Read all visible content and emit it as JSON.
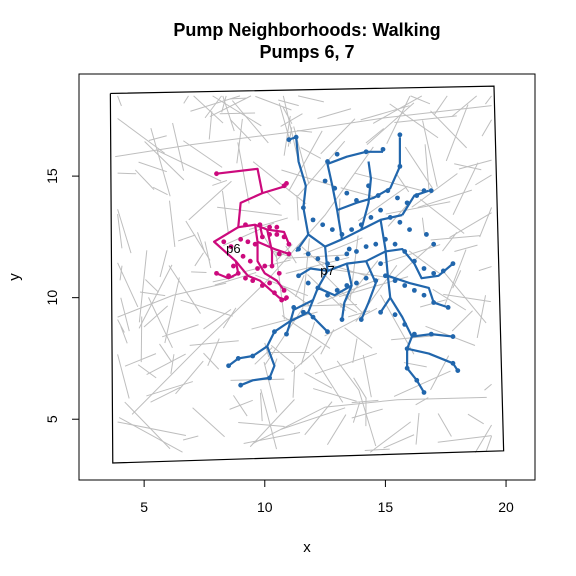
{
  "chart_data": {
    "type": "scatter",
    "title": "Pump Neighborhoods: Walking",
    "subtitle": "Pumps 6, 7",
    "xlabel": "x",
    "ylabel": "y",
    "xlim": [
      2.3,
      21.2
    ],
    "ylim": [
      2.5,
      19.2
    ],
    "x_ticks": [
      5,
      10,
      15,
      20
    ],
    "y_ticks": [
      5,
      10,
      15
    ],
    "grid": false,
    "colors": {
      "streets": "#bebebe",
      "border": "#000000",
      "pump6": "#cc0a7d",
      "pump7": "#2166ac"
    },
    "map_border": [
      [
        3.6,
        18.4
      ],
      [
        19.5,
        18.7
      ],
      [
        19.9,
        3.7
      ],
      [
        3.7,
        3.2
      ]
    ],
    "pumps": [
      {
        "label": "p6",
        "x": 8.7,
        "y": 12.0
      },
      {
        "label": "p7",
        "x": 12.6,
        "y": 11.1
      }
    ],
    "series": [
      {
        "label": "p6",
        "color": "#cc0a7d",
        "paths": [
          [
            [
              8.0,
              15.1
            ],
            [
              9.7,
              15.3
            ],
            [
              9.9,
              14.3
            ],
            [
              9.0,
              13.9
            ],
            [
              8.9,
              12.9
            ],
            [
              7.9,
              12.3
            ],
            [
              8.8,
              11.5
            ],
            [
              9.3,
              10.9
            ],
            [
              9.8,
              10.7
            ],
            [
              10.6,
              10.0
            ],
            [
              10.9,
              9.9
            ]
          ],
          [
            [
              9.9,
              14.3
            ],
            [
              10.9,
              14.6
            ]
          ],
          [
            [
              8.9,
              12.9
            ],
            [
              9.6,
              13.0
            ],
            [
              10.1,
              12.8
            ],
            [
              10.8,
              12.7
            ],
            [
              11.0,
              12.2
            ]
          ],
          [
            [
              9.6,
              13.0
            ],
            [
              9.7,
              12.3
            ],
            [
              9.7,
              11.5
            ],
            [
              10.0,
              11.0
            ],
            [
              10.5,
              10.7
            ],
            [
              10.8,
              10.3
            ]
          ],
          [
            [
              8.8,
              11.5
            ],
            [
              8.9,
              11.0
            ],
            [
              8.5,
              10.8
            ],
            [
              8.0,
              11.0
            ]
          ],
          [
            [
              9.7,
              12.3
            ],
            [
              10.4,
              12.0
            ],
            [
              11.0,
              11.8
            ]
          ],
          [
            [
              10.1,
              12.8
            ],
            [
              10.3,
              11.9
            ],
            [
              10.3,
              11.3
            ]
          ],
          [
            [
              9.8,
              13.0
            ],
            [
              9.9,
              12.5
            ]
          ]
        ],
        "points": [
          [
            8.0,
            15.1
          ],
          [
            10.8,
            14.6
          ],
          [
            10.9,
            14.7
          ],
          [
            10.9,
            10.0
          ],
          [
            10.8,
            10.3
          ],
          [
            11.0,
            12.2
          ],
          [
            11.0,
            11.8
          ],
          [
            8.0,
            11.0
          ],
          [
            9.0,
            12.4
          ],
          [
            9.3,
            12.3
          ],
          [
            9.6,
            12.2
          ],
          [
            9.9,
            12.5
          ],
          [
            10.2,
            12.6
          ],
          [
            10.5,
            12.6
          ],
          [
            10.8,
            12.5
          ],
          [
            9.1,
            11.7
          ],
          [
            9.4,
            11.5
          ],
          [
            9.7,
            11.2
          ],
          [
            10.0,
            11.3
          ],
          [
            10.3,
            11.3
          ],
          [
            10.6,
            11.0
          ],
          [
            8.5,
            10.9
          ],
          [
            8.9,
            11.0
          ],
          [
            9.2,
            10.8
          ],
          [
            9.5,
            10.7
          ],
          [
            9.9,
            10.5
          ],
          [
            10.2,
            10.6
          ],
          [
            10.4,
            10.2
          ],
          [
            10.7,
            9.9
          ],
          [
            8.3,
            12.3
          ],
          [
            8.6,
            12.1
          ],
          [
            9.8,
            13.0
          ],
          [
            10.2,
            12.9
          ],
          [
            10.5,
            12.9
          ],
          [
            9.2,
            13.0
          ],
          [
            8.7,
            11.3
          ],
          [
            10.6,
            11.8
          ]
        ]
      },
      {
        "label": "p7",
        "color": "#2166ac",
        "paths": [
          [
            [
              11.0,
              16.5
            ],
            [
              11.3,
              16.6
            ],
            [
              11.4,
              15.6
            ],
            [
              11.7,
              14.6
            ],
            [
              11.6,
              13.7
            ],
            [
              11.8,
              12.6
            ],
            [
              11.3,
              11.9
            ]
          ],
          [
            [
              11.8,
              12.6
            ],
            [
              12.5,
              12.1
            ],
            [
              13.2,
              12.4
            ],
            [
              14.0,
              12.8
            ],
            [
              14.8,
              13.2
            ],
            [
              15.7,
              13.4
            ]
          ],
          [
            [
              12.5,
              12.1
            ],
            [
              12.6,
              11.1
            ],
            [
              12.2,
              10.4
            ],
            [
              12.0,
              9.9
            ],
            [
              11.8,
              9.4
            ],
            [
              12.6,
              8.6
            ]
          ],
          [
            [
              12.6,
              11.1
            ],
            [
              13.4,
              11.4
            ],
            [
              14.2,
              11.5
            ],
            [
              15.0,
              11.9
            ],
            [
              15.7,
              12.0
            ],
            [
              16.2,
              11.4
            ],
            [
              16.5,
              10.8
            ],
            [
              17.2,
              10.9
            ],
            [
              17.8,
              11.4
            ]
          ],
          [
            [
              13.2,
              12.4
            ],
            [
              13.0,
              13.6
            ],
            [
              12.8,
              14.6
            ],
            [
              12.6,
              15.5
            ],
            [
              13.4,
              15.8
            ],
            [
              14.2,
              16.0
            ],
            [
              14.9,
              16.0
            ]
          ],
          [
            [
              13.0,
              13.6
            ],
            [
              13.8,
              13.9
            ],
            [
              14.5,
              14.1
            ],
            [
              15.2,
              14.5
            ],
            [
              15.6,
              15.4
            ],
            [
              15.6,
              16.6
            ]
          ],
          [
            [
              14.0,
              12.8
            ],
            [
              14.3,
              13.9
            ],
            [
              14.4,
              14.9
            ],
            [
              14.3,
              15.6
            ]
          ],
          [
            [
              14.8,
              13.2
            ],
            [
              15.0,
              12.0
            ],
            [
              15.1,
              10.9
            ],
            [
              15.2,
              10.0
            ],
            [
              14.8,
              9.4
            ]
          ],
          [
            [
              15.1,
              10.9
            ],
            [
              16.0,
              10.6
            ],
            [
              16.8,
              10.4
            ],
            [
              17.0,
              9.8
            ],
            [
              17.6,
              9.6
            ]
          ],
          [
            [
              15.2,
              10.0
            ],
            [
              15.7,
              9.2
            ],
            [
              16.1,
              8.4
            ],
            [
              15.9,
              7.9
            ],
            [
              15.9,
              7.1
            ],
            [
              16.3,
              6.6
            ],
            [
              16.6,
              6.1
            ]
          ],
          [
            [
              15.9,
              7.9
            ],
            [
              16.8,
              7.7
            ],
            [
              17.8,
              7.3
            ],
            [
              18.0,
              7.0
            ]
          ],
          [
            [
              16.1,
              8.4
            ],
            [
              16.9,
              8.5
            ],
            [
              17.8,
              8.4
            ]
          ],
          [
            [
              11.8,
              9.4
            ],
            [
              11.0,
              9.0
            ],
            [
              10.4,
              8.6
            ],
            [
              10.1,
              8.0
            ],
            [
              9.5,
              7.6
            ],
            [
              8.9,
              7.5
            ],
            [
              8.5,
              7.2
            ]
          ],
          [
            [
              10.1,
              8.0
            ],
            [
              10.4,
              7.2
            ],
            [
              10.2,
              6.7
            ],
            [
              9.5,
              6.6
            ],
            [
              9.0,
              6.4
            ]
          ],
          [
            [
              12.0,
              9.9
            ],
            [
              11.2,
              9.5
            ],
            [
              11.0,
              8.8
            ],
            [
              10.9,
              8.5
            ]
          ],
          [
            [
              14.2,
              11.5
            ],
            [
              14.6,
              10.6
            ],
            [
              14.3,
              9.8
            ],
            [
              14.0,
              9.1
            ]
          ],
          [
            [
              15.7,
              13.4
            ],
            [
              16.2,
              14.2
            ],
            [
              16.8,
              14.4
            ]
          ],
          [
            [
              13.4,
              11.4
            ],
            [
              13.6,
              10.5
            ],
            [
              13.3,
              9.8
            ],
            [
              13.2,
              9.1
            ]
          ],
          [
            [
              12.6,
              11.1
            ],
            [
              11.9,
              11.2
            ],
            [
              11.4,
              10.9
            ]
          ],
          [
            [
              12.2,
              10.4
            ],
            [
              12.9,
              10.1
            ],
            [
              13.6,
              10.5
            ]
          ]
        ],
        "points": [
          [
            11.0,
            16.5
          ],
          [
            11.3,
            16.6
          ],
          [
            12.6,
            15.6
          ],
          [
            13.0,
            15.9
          ],
          [
            14.2,
            16.0
          ],
          [
            14.9,
            16.1
          ],
          [
            15.6,
            16.7
          ],
          [
            15.6,
            15.4
          ],
          [
            12.5,
            14.8
          ],
          [
            12.9,
            14.5
          ],
          [
            13.4,
            14.3
          ],
          [
            13.8,
            14.0
          ],
          [
            14.3,
            14.6
          ],
          [
            14.7,
            14.2
          ],
          [
            15.1,
            14.4
          ],
          [
            15.5,
            14.1
          ],
          [
            15.9,
            13.9
          ],
          [
            16.3,
            14.2
          ],
          [
            16.6,
            14.4
          ],
          [
            16.9,
            14.4
          ],
          [
            11.6,
            13.7
          ],
          [
            12.0,
            13.2
          ],
          [
            12.4,
            13.0
          ],
          [
            12.8,
            12.8
          ],
          [
            13.2,
            12.6
          ],
          [
            13.6,
            12.8
          ],
          [
            14.0,
            13.0
          ],
          [
            14.4,
            13.3
          ],
          [
            14.8,
            13.6
          ],
          [
            15.2,
            13.3
          ],
          [
            15.6,
            13.1
          ],
          [
            16.0,
            12.8
          ],
          [
            11.4,
            12.0
          ],
          [
            11.8,
            11.8
          ],
          [
            12.2,
            11.6
          ],
          [
            12.6,
            11.4
          ],
          [
            13.0,
            11.6
          ],
          [
            13.4,
            11.8
          ],
          [
            13.8,
            11.9
          ],
          [
            14.2,
            12.1
          ],
          [
            14.6,
            12.2
          ],
          [
            15.0,
            12.4
          ],
          [
            15.4,
            12.2
          ],
          [
            15.8,
            11.9
          ],
          [
            16.2,
            11.5
          ],
          [
            16.6,
            11.2
          ],
          [
            17.0,
            11.0
          ],
          [
            17.4,
            11.1
          ],
          [
            17.8,
            11.4
          ],
          [
            11.4,
            10.9
          ],
          [
            11.8,
            10.6
          ],
          [
            12.2,
            10.4
          ],
          [
            12.6,
            10.1
          ],
          [
            13.0,
            10.3
          ],
          [
            13.4,
            10.5
          ],
          [
            13.8,
            10.6
          ],
          [
            14.2,
            10.8
          ],
          [
            14.6,
            10.7
          ],
          [
            15.0,
            10.9
          ],
          [
            15.4,
            10.7
          ],
          [
            15.8,
            10.5
          ],
          [
            16.2,
            10.3
          ],
          [
            16.6,
            10.1
          ],
          [
            17.0,
            9.8
          ],
          [
            17.6,
            9.6
          ],
          [
            11.2,
            9.6
          ],
          [
            11.6,
            9.4
          ],
          [
            12.0,
            9.2
          ],
          [
            12.6,
            8.6
          ],
          [
            13.2,
            9.1
          ],
          [
            14.0,
            9.1
          ],
          [
            14.8,
            9.4
          ],
          [
            15.4,
            9.3
          ],
          [
            15.8,
            8.9
          ],
          [
            16.2,
            8.5
          ],
          [
            16.9,
            8.5
          ],
          [
            17.8,
            8.4
          ],
          [
            15.9,
            7.9
          ],
          [
            15.9,
            7.1
          ],
          [
            16.3,
            6.6
          ],
          [
            16.6,
            6.1
          ],
          [
            17.8,
            7.3
          ],
          [
            18.0,
            7.0
          ],
          [
            10.9,
            8.5
          ],
          [
            10.4,
            8.6
          ],
          [
            9.5,
            7.6
          ],
          [
            8.9,
            7.5
          ],
          [
            8.5,
            7.2
          ],
          [
            9.0,
            6.4
          ],
          [
            10.2,
            6.7
          ],
          [
            16.7,
            12.6
          ],
          [
            17.0,
            12.2
          ],
          [
            13.5,
            12.0
          ],
          [
            14.8,
            11.4
          ]
        ]
      }
    ]
  }
}
